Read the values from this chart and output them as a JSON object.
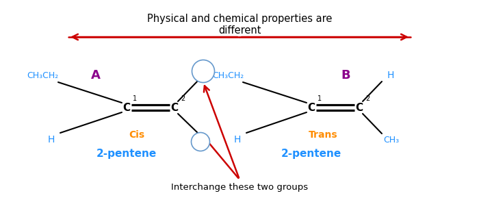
{
  "title": "Physical and chemical properties are\ndifferent",
  "title_color": "#000000",
  "title_fontsize": 11,
  "background_color": "#ffffff",
  "label_A": "A",
  "label_B": "B",
  "label_A_color": "#8B008B",
  "label_B_color": "#8B008B",
  "cis_label": "Cis",
  "trans_label": "Trans",
  "cis_color": "#FF8C00",
  "trans_color": "#FF8C00",
  "pentene_label": "2-pentene",
  "pentene_color": "#1E90FF",
  "interchange_label": "Interchange these two groups",
  "arrow_color": "#CC0000",
  "bond_color": "#000000",
  "group_color": "#1E90FF",
  "carbon_color": "#000000",
  "circle_color": "#6699CC"
}
